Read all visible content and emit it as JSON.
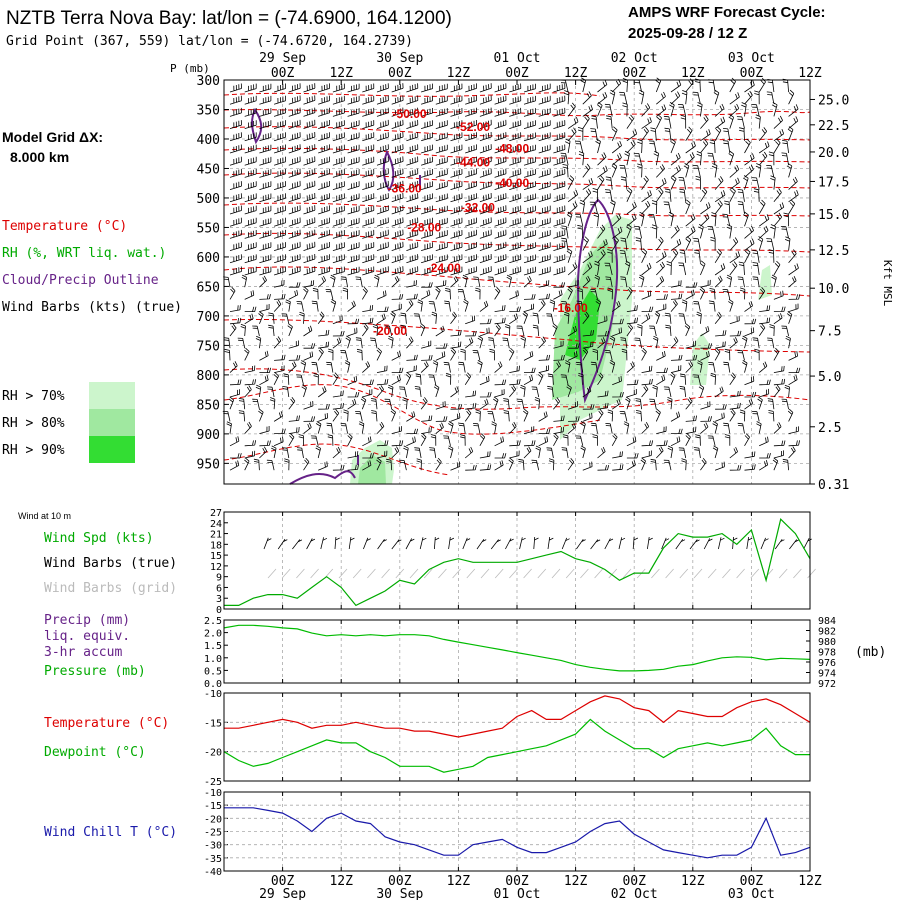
{
  "header": {
    "title": "NZTB Terra Nova Bay:  lat/lon = (-74.6900, 164.1200)",
    "grid_point": "Grid Point (367, 559) lat/lon = (-74.6720, 164.2739)",
    "forecast_label": "AMPS WRF Forecast Cycle:",
    "forecast_cycle": "2025-09-28 / 12  Z"
  },
  "time_axis": {
    "hour_ticks": [
      "00Z",
      "12Z",
      "00Z",
      "12Z",
      "00Z",
      "12Z",
      "00Z",
      "12Z",
      "00Z",
      "12Z"
    ],
    "tick_hours": [
      12,
      24,
      36,
      48,
      60,
      72,
      84,
      96,
      108,
      120
    ],
    "day_labels": [
      "29 Sep",
      "30 Sep",
      "01 Oct",
      "02 Oct",
      "03 Oct"
    ],
    "day_hours": [
      12,
      36,
      60,
      84,
      108
    ],
    "range_hours": [
      0,
      120
    ]
  },
  "legend": {
    "model_grid": "Model Grid ΔX:",
    "model_grid_value": "8.000 km",
    "temperature": "Temperature (°C)",
    "rh": "RH (%, WRT liq. wat.)",
    "cloud": "Cloud/Precip Outline",
    "wind_barbs": "Wind Barbs (kts) (true)",
    "rh_levels": [
      {
        "label": "RH > 70%",
        "color": "#ccf5cc"
      },
      {
        "label": "RH > 80%",
        "color": "#a0e8a0"
      },
      {
        "label": "RH > 90%",
        "color": "#33dd33"
      }
    ]
  },
  "colors": {
    "temperature": "#dd0000",
    "rh": "#00aa00",
    "cloud": "#662288",
    "wind": "#000000",
    "wind_grid": "#bbbbbb",
    "pressure": "#00bb00",
    "dewpoint": "#00bb00",
    "windchill": "#1a1aaa",
    "grid": "#aaaaaa"
  },
  "chart_data": [
    {
      "type": "heatmap",
      "name": "cross-section",
      "ylabel": "P (mb)",
      "ylim": [
        300,
        985
      ],
      "pressure_ticks": [
        300,
        350,
        400,
        450,
        500,
        550,
        600,
        650,
        700,
        750,
        800,
        850,
        900,
        950
      ],
      "right_axis_label": "Kft MSL",
      "height_ticks": [
        {
          "label": "25.0",
          "p": 333
        },
        {
          "label": "22.5",
          "p": 376
        },
        {
          "label": "20.0",
          "p": 422
        },
        {
          "label": "17.5",
          "p": 472
        },
        {
          "label": "15.0",
          "p": 527
        },
        {
          "label": "12.5",
          "p": 588
        },
        {
          "label": "10.0",
          "p": 653
        },
        {
          "label": "7.5",
          "p": 725
        },
        {
          "label": "5.0",
          "p": 802
        },
        {
          "label": "2.5",
          "p": 888
        },
        {
          "label": "0.31",
          "p": 985
        }
      ],
      "isotherm_labels": [
        {
          "text": "-50.00",
          "t": 38,
          "p": 358
        },
        {
          "text": "-52.00",
          "t": 51,
          "p": 380
        },
        {
          "text": "-48.00",
          "t": 59,
          "p": 416
        },
        {
          "text": "-44.00",
          "t": 51,
          "p": 440
        },
        {
          "text": "-40.00",
          "t": 59,
          "p": 475
        },
        {
          "text": "-36.00",
          "t": 37,
          "p": 484
        },
        {
          "text": "-32.00",
          "t": 52,
          "p": 516
        },
        {
          "text": "-28.00",
          "t": 41,
          "p": 550
        },
        {
          "text": "-24.00",
          "t": 45,
          "p": 619
        },
        {
          "text": "-16.00",
          "t": 71,
          "p": 687
        },
        {
          "text": "-20.00",
          "t": 34,
          "p": 726
        }
      ]
    },
    {
      "type": "line",
      "name": "wind",
      "subtitle": "Wind at 10 m",
      "labels": [
        "Wind Spd (kts)",
        "Wind Barbs (true)",
        "Wind Barbs (grid)"
      ],
      "ylim": [
        0,
        27
      ],
      "yticks": [
        0,
        3,
        6,
        9,
        12,
        15,
        18,
        21,
        24,
        27
      ],
      "x": [
        0,
        3,
        6,
        9,
        12,
        15,
        18,
        21,
        24,
        27,
        30,
        33,
        36,
        39,
        42,
        45,
        48,
        51,
        54,
        57,
        60,
        63,
        66,
        69,
        72,
        75,
        78,
        81,
        84,
        87,
        90,
        93,
        96,
        99,
        102,
        105,
        108,
        111,
        114,
        117,
        120
      ],
      "series": [
        {
          "name": "Wind Spd (kts)",
          "values": [
            1,
            1,
            3,
            4,
            4,
            3,
            6,
            9,
            6,
            1,
            3,
            5,
            8,
            7,
            11,
            13,
            14,
            13,
            13,
            13,
            13,
            14,
            15,
            16,
            14,
            13,
            11,
            8,
            10,
            10,
            17,
            21,
            20,
            20,
            21,
            18,
            22,
            8,
            25,
            21,
            14
          ]
        }
      ]
    },
    {
      "type": "line",
      "name": "precip-pressure",
      "labels": [
        "Precip (mm)",
        "liq. equiv.",
        "3-hr accum",
        "Pressure (mb)"
      ],
      "ylim": [
        0,
        2.5
      ],
      "yticks": [
        "0.0",
        "0.5",
        "1.0",
        "1.5",
        "2.0",
        "2.5"
      ],
      "ylim_right": [
        972,
        984
      ],
      "yticks_right": [
        972,
        974,
        976,
        978,
        980,
        982,
        984
      ],
      "right_unit": "(mb)",
      "x": [
        0,
        3,
        6,
        9,
        12,
        15,
        18,
        21,
        24,
        27,
        30,
        33,
        36,
        39,
        42,
        45,
        48,
        51,
        54,
        57,
        60,
        63,
        66,
        69,
        72,
        75,
        78,
        81,
        84,
        87,
        90,
        93,
        96,
        99,
        102,
        105,
        108,
        111,
        114,
        117,
        120
      ],
      "series": [
        {
          "name": "Pressure (mb)",
          "values": [
            982.5,
            983,
            983,
            982.8,
            982.5,
            982.3,
            981.5,
            981,
            981.2,
            981,
            981.2,
            981,
            981.2,
            981.2,
            981,
            980.3,
            979.8,
            979.3,
            978.8,
            978.3,
            977.8,
            977.3,
            976.8,
            976.3,
            975.5,
            975,
            974.6,
            974.3,
            974.3,
            974.4,
            974.6,
            975.2,
            975.5,
            976.2,
            976.8,
            977,
            976.9,
            976.4,
            976.7,
            976.6,
            976.5
          ]
        }
      ]
    },
    {
      "type": "line",
      "name": "temperature-dewpoint",
      "labels": [
        "Temperature (°C)",
        "Dewpoint (°C)"
      ],
      "ylim": [
        -25,
        -10
      ],
      "yticks": [
        -25,
        -20,
        -15,
        -10
      ],
      "x": [
        0,
        3,
        6,
        9,
        12,
        15,
        18,
        21,
        24,
        27,
        30,
        33,
        36,
        39,
        42,
        45,
        48,
        51,
        54,
        57,
        60,
        63,
        66,
        69,
        72,
        75,
        78,
        81,
        84,
        87,
        90,
        93,
        96,
        99,
        102,
        105,
        108,
        111,
        114,
        117,
        120
      ],
      "series": [
        {
          "name": "Temperature (°C)",
          "values": [
            -16,
            -16,
            -15.5,
            -15,
            -14.5,
            -15,
            -16,
            -15.5,
            -15.5,
            -15,
            -15.5,
            -16,
            -16,
            -16.5,
            -16.5,
            -17,
            -17.5,
            -17,
            -16.5,
            -16,
            -14,
            -13,
            -14.5,
            -14.5,
            -13,
            -11.5,
            -10.5,
            -11,
            -12.5,
            -13,
            -15,
            -13,
            -13.5,
            -14,
            -14,
            -12.5,
            -11.5,
            -11,
            -12,
            -13.5,
            -15
          ]
        },
        {
          "name": "Dewpoint (°C)",
          "values": [
            -20,
            -21.5,
            -22.5,
            -22,
            -21,
            -20,
            -19,
            -18,
            -18.5,
            -18.5,
            -20,
            -21,
            -22.5,
            -22.5,
            -22.5,
            -23.5,
            -23,
            -22.5,
            -21,
            -20.5,
            -20,
            -19.5,
            -19,
            -18,
            -17,
            -14.5,
            -16.5,
            -18,
            -19.5,
            -19.5,
            -21,
            -19.5,
            -19,
            -18.5,
            -19,
            -18.5,
            -18,
            -16,
            -19,
            -20.5,
            -20.5
          ]
        }
      ]
    },
    {
      "type": "line",
      "name": "wind-chill",
      "labels": [
        "Wind Chill T (°C)"
      ],
      "ylim": [
        -40,
        -10
      ],
      "yticks": [
        -40,
        -35,
        -30,
        -25,
        -20,
        -15,
        -10
      ],
      "x": [
        0,
        3,
        6,
        9,
        12,
        15,
        18,
        21,
        24,
        27,
        30,
        33,
        36,
        39,
        42,
        45,
        48,
        51,
        54,
        57,
        60,
        63,
        66,
        69,
        72,
        75,
        78,
        81,
        84,
        87,
        90,
        93,
        96,
        99,
        102,
        105,
        108,
        111,
        114,
        117,
        120
      ],
      "series": [
        {
          "name": "Wind Chill T (°C)",
          "values": [
            -16,
            -16,
            -16,
            -17,
            -18,
            -21,
            -25,
            -20,
            -18,
            -21,
            -22,
            -27,
            -29,
            -30,
            -32,
            -34,
            -34,
            -30,
            -29,
            -28,
            -31,
            -33,
            -33,
            -31,
            -29,
            -25,
            -22,
            -21,
            -26,
            -29,
            -32,
            -33,
            -34,
            -35,
            -34,
            -34,
            -31,
            -20,
            -34,
            -33,
            -31
          ]
        }
      ]
    }
  ]
}
